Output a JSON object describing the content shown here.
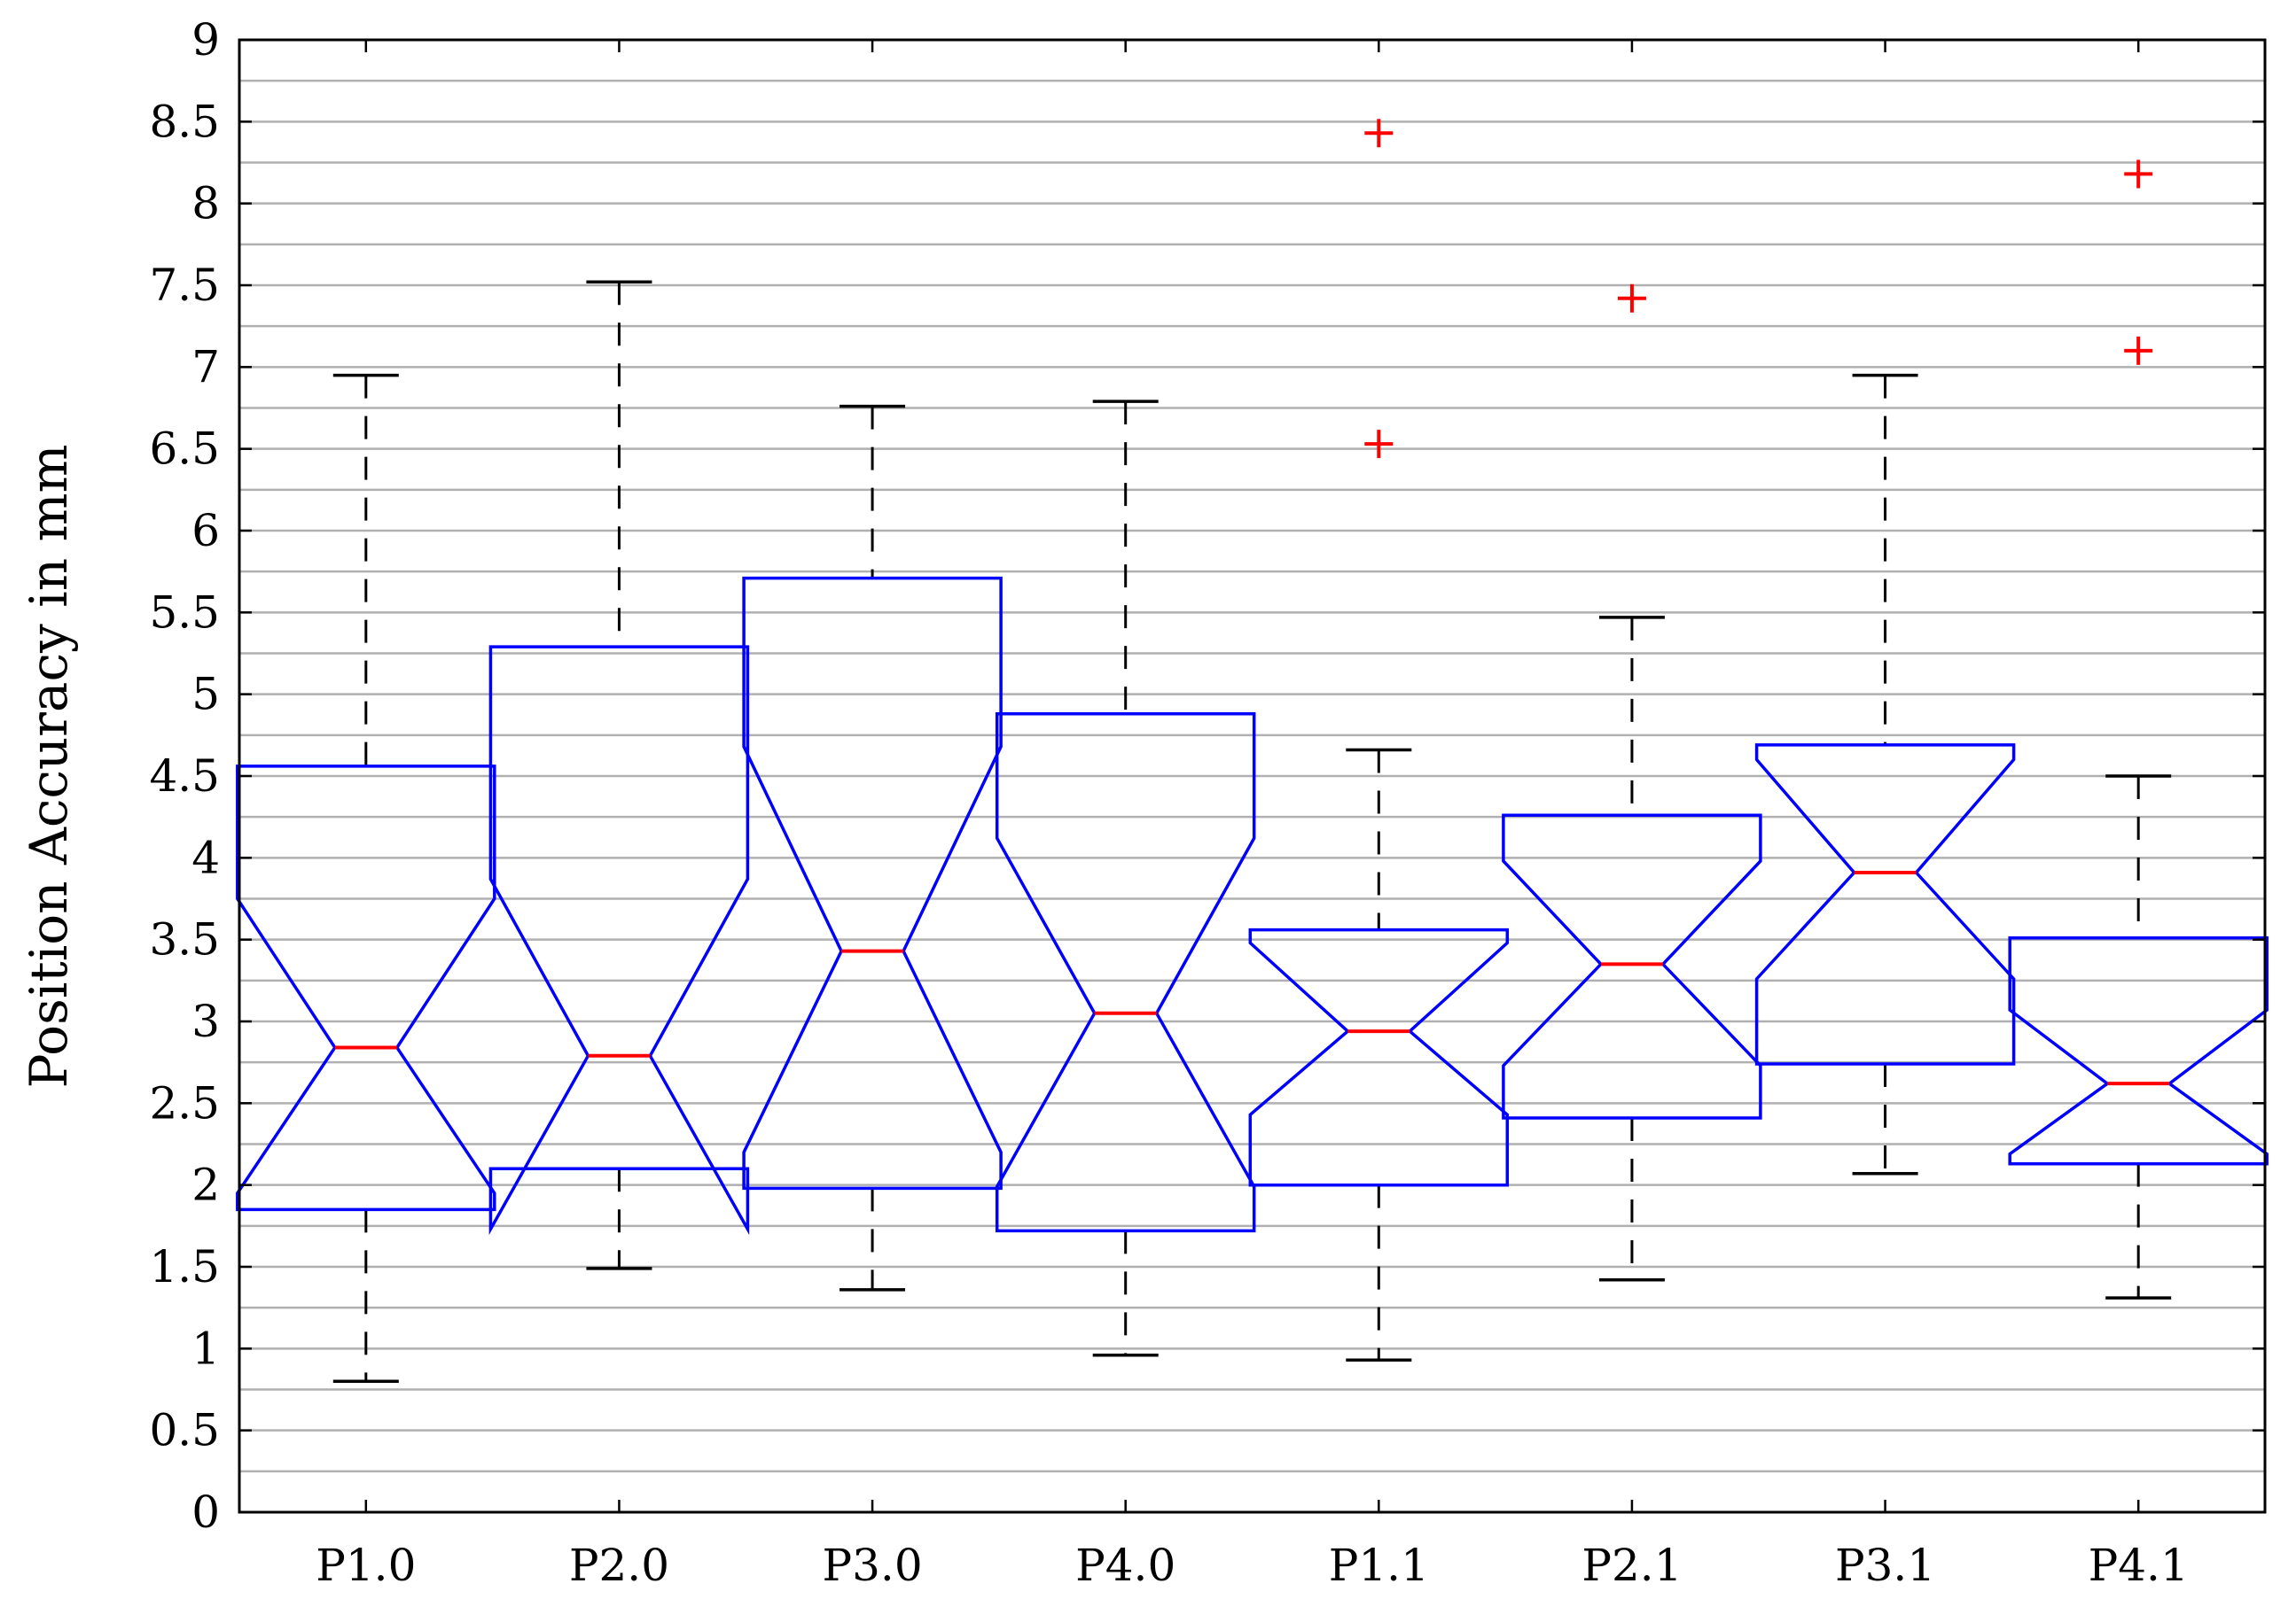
{
  "chart_data": {
    "type": "box",
    "ylabel": "Position Accuracy in mm",
    "xlabel": "",
    "title": "",
    "ylim": [
      0,
      9
    ],
    "ytick_labels": [
      "0",
      "0.5",
      "1",
      "1.5",
      "2",
      "2.5",
      "3",
      "3.5",
      "4",
      "4.5",
      "5",
      "5.5",
      "6",
      "6.5",
      "7",
      "7.5",
      "8",
      "8.5",
      "9"
    ],
    "grid": "horizontal",
    "notched": true,
    "categories": [
      "P1.0",
      "P2.0",
      "P3.0",
      "P4.0",
      "P1.1",
      "P2.1",
      "P3.1",
      "P4.1"
    ],
    "boxes": [
      {
        "category": "P1.0",
        "whisker_low": 0.8,
        "q1": 1.85,
        "notch_low": 1.95,
        "median": 2.84,
        "notch_high": 3.75,
        "q3": 4.56,
        "whisker_high": 6.95,
        "outliers": []
      },
      {
        "category": "P2.0",
        "whisker_low": 1.49,
        "q1": 2.1,
        "notch_low": 1.73,
        "median": 2.79,
        "notch_high": 3.87,
        "q3": 5.29,
        "whisker_high": 7.52,
        "outliers": []
      },
      {
        "category": "P3.0",
        "whisker_low": 1.36,
        "q1": 1.98,
        "notch_low": 2.2,
        "median": 3.43,
        "notch_high": 4.68,
        "q3": 5.71,
        "whisker_high": 6.76,
        "outliers": []
      },
      {
        "category": "P4.0",
        "whisker_low": 0.96,
        "q1": 1.72,
        "notch_low": 1.99,
        "median": 3.05,
        "notch_high": 4.12,
        "q3": 4.88,
        "whisker_high": 6.79,
        "outliers": []
      },
      {
        "category": "P1.1",
        "whisker_low": 0.93,
        "q1": 2.0,
        "notch_low": 2.43,
        "median": 2.94,
        "notch_high": 3.48,
        "q3": 3.56,
        "whisker_high": 4.66,
        "outliers": [
          6.53,
          8.43
        ]
      },
      {
        "category": "P2.1",
        "whisker_low": 1.42,
        "q1": 2.41,
        "notch_low": 2.73,
        "median": 3.35,
        "notch_high": 3.98,
        "q3": 4.26,
        "whisker_high": 5.47,
        "outliers": [
          7.42
        ]
      },
      {
        "category": "P3.1",
        "whisker_low": 2.07,
        "q1": 2.74,
        "notch_low": 3.26,
        "median": 3.91,
        "notch_high": 4.6,
        "q3": 4.69,
        "whisker_high": 6.95,
        "outliers": []
      },
      {
        "category": "P4.1",
        "whisker_low": 1.31,
        "q1": 2.13,
        "notch_low": 2.19,
        "median": 2.62,
        "notch_high": 3.07,
        "q3": 3.51,
        "whisker_high": 4.5,
        "outliers": [
          7.1,
          8.18
        ]
      }
    ],
    "colors": {
      "box": "#0000ff",
      "median": "#ff0000",
      "outlier": "#ff0000",
      "whisker": "#000000",
      "grid": "#b0b0b0"
    }
  }
}
